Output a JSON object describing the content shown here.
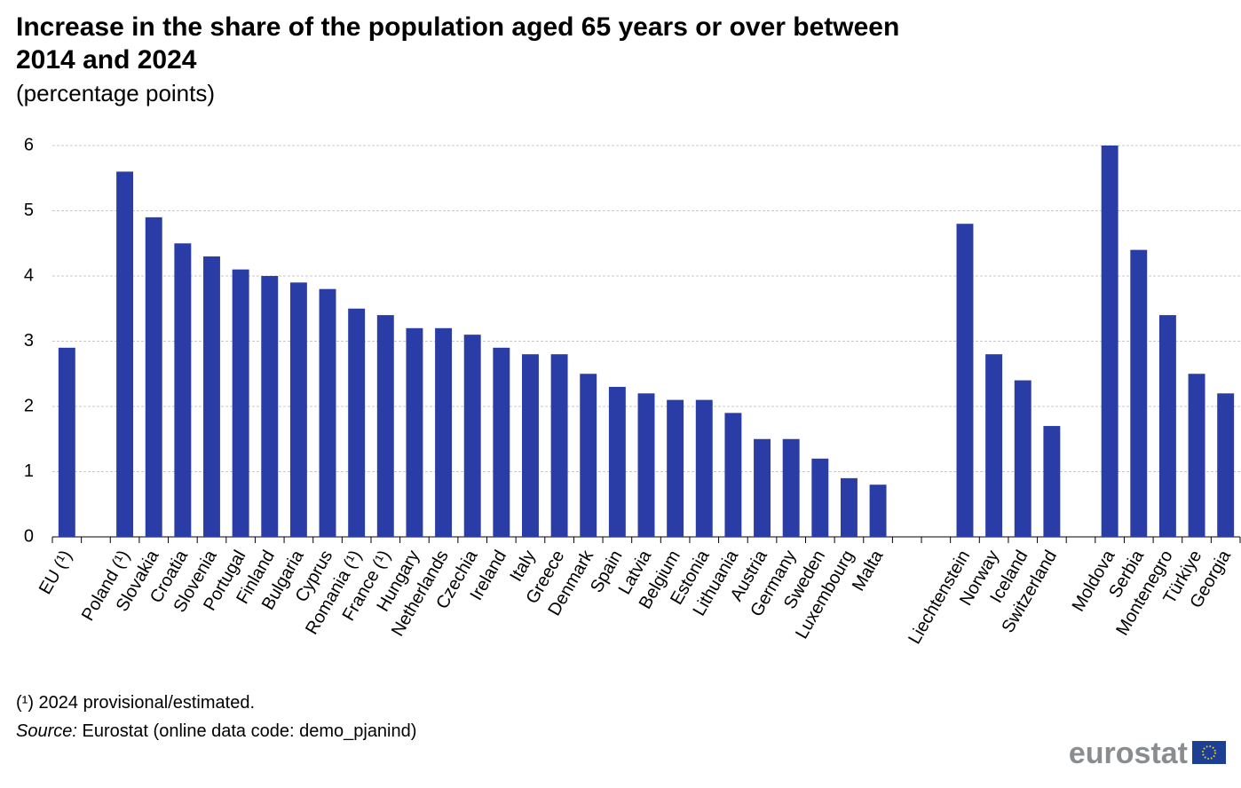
{
  "chart_data": {
    "type": "bar",
    "title": "Increase in the share of the population aged 65 years or over between 2014 and 2024",
    "subtitle": "(percentage points)",
    "categories": [
      "EU (¹)",
      null,
      "Poland (¹)",
      "Slovakia",
      "Croatia",
      "Slovenia",
      "Portugal",
      "Finland",
      "Bulgaria",
      "Cyprus",
      "Romania (¹)",
      "France (¹)",
      "Hungary",
      "Netherlands",
      "Czechia",
      "Ireland",
      "Italy",
      "Greece",
      "Denmark",
      "Spain",
      "Latvia",
      "Belgium",
      "Estonia",
      "Lithuania",
      "Austria",
      "Germany",
      "Sweden",
      "Luxembourg",
      "Malta",
      null,
      null,
      "Liechtenstein",
      "Norway",
      "Iceland",
      "Switzerland",
      null,
      "Moldova",
      "Serbia",
      "Montenegro",
      "Türkiye",
      "Georgia"
    ],
    "values": [
      2.9,
      null,
      5.6,
      4.9,
      4.5,
      4.3,
      4.1,
      4.0,
      3.9,
      3.8,
      3.5,
      3.4,
      3.2,
      3.2,
      3.1,
      2.9,
      2.8,
      2.8,
      2.5,
      2.3,
      2.2,
      2.1,
      2.1,
      1.9,
      1.5,
      1.5,
      1.2,
      0.9,
      0.8,
      null,
      null,
      4.8,
      2.8,
      2.4,
      1.7,
      null,
      6.0,
      4.4,
      3.4,
      2.5,
      2.2
    ],
    "color": "#2a3da6",
    "ylim": [
      0,
      6
    ],
    "yticks": [
      0,
      1,
      2,
      3,
      4,
      5,
      6
    ],
    "grid": true,
    "footnote": "(¹) 2024 provisional/estimated.",
    "source_label": "Source:",
    "source_text": " Eurostat (online data code: demo_pjanind)",
    "logo": "eurostat"
  }
}
